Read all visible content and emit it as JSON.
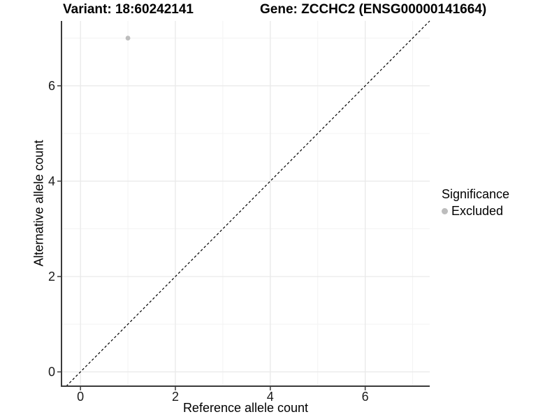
{
  "chart_data": {
    "type": "scatter",
    "title_left": "Variant: 18:60242141",
    "title_right": "Gene: ZCCHC2 (ENSG00000141664)",
    "xlabel": "Reference allele count",
    "ylabel": "Alternative allele count",
    "xlim": [
      -0.4,
      7.36
    ],
    "ylim": [
      -0.3,
      7.36
    ],
    "x_ticks": {
      "values": [
        0,
        2,
        4,
        6
      ],
      "labels": [
        "0",
        "2",
        "4",
        "6"
      ],
      "minor": [
        1,
        3,
        5,
        7
      ]
    },
    "y_ticks": {
      "values": [
        0,
        2,
        4,
        6
      ],
      "labels": [
        "0",
        "2",
        "4",
        "6"
      ],
      "minor": [
        1,
        3,
        5,
        7
      ]
    },
    "series": [
      {
        "name": "Excluded",
        "color": "#bdbdbd",
        "points": [
          {
            "x": 1,
            "y": 7
          }
        ]
      }
    ],
    "reference_line": {
      "kind": "identity",
      "style": "dashed",
      "color": "#000000"
    },
    "legend": {
      "position": "right",
      "title": "Significance",
      "items": [
        {
          "label": "Excluded",
          "color": "#bdbdbd"
        }
      ]
    },
    "grid": {
      "major_color": "#e9e9e9",
      "minor_color": "#f3f3f3",
      "minor_on": true
    },
    "colors": {
      "axis_line": "#3b3b3b",
      "tick_text": "#1a1a1a",
      "title_text": "#000000",
      "background": "#ffffff"
    }
  }
}
